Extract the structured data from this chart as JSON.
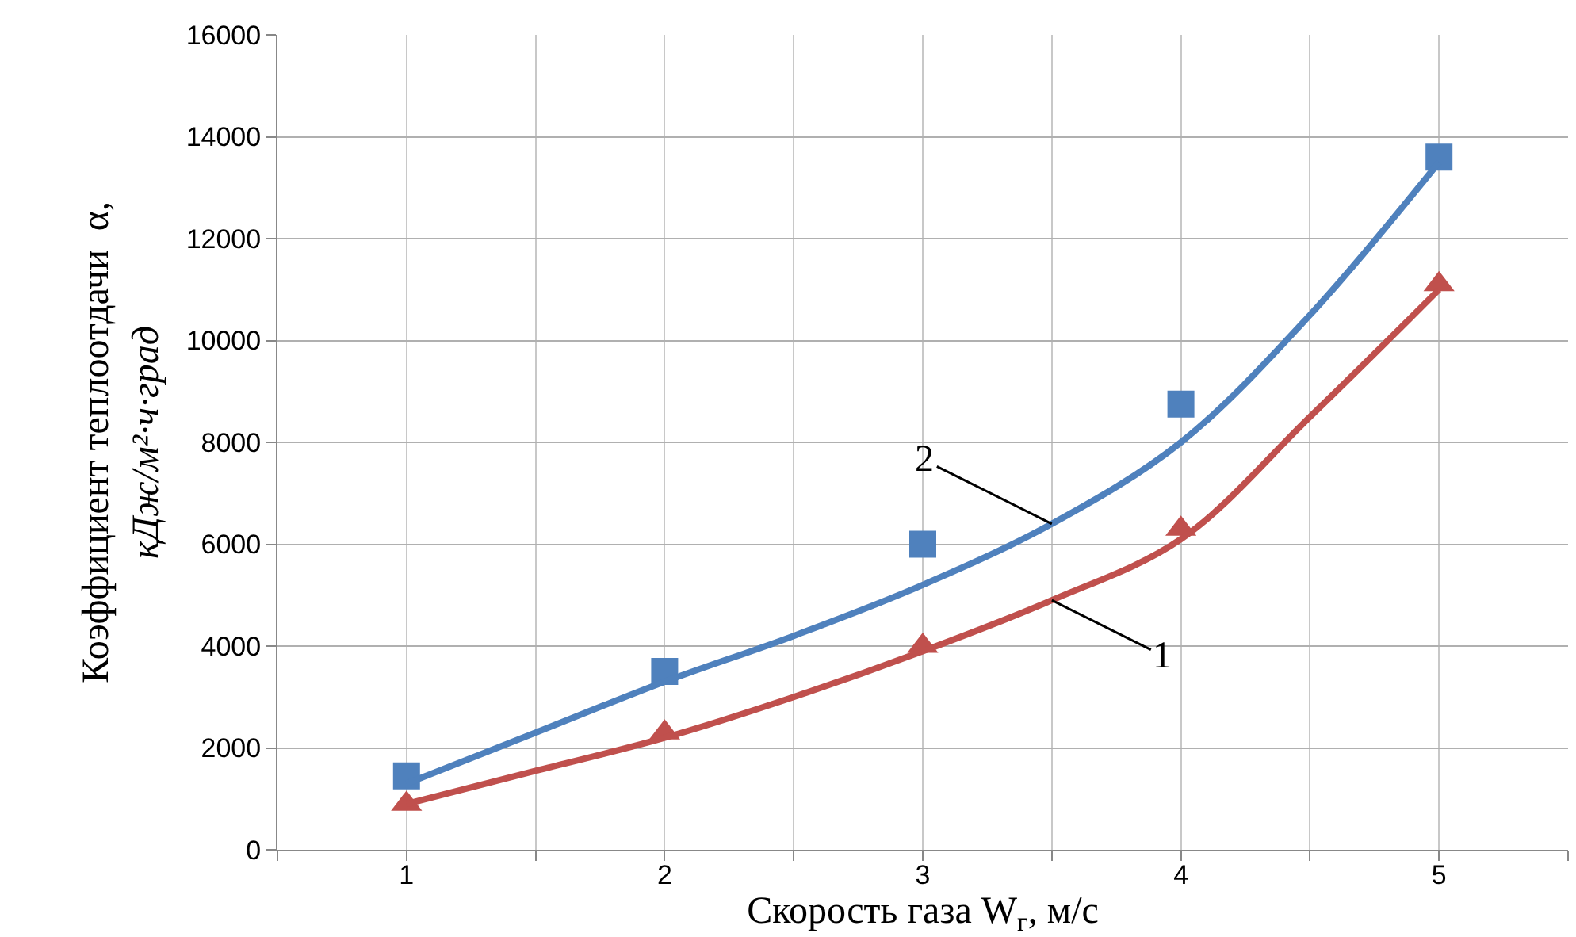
{
  "chart_data": {
    "type": "scatter",
    "xlabel": "Скорость газа W$_{г}$, м/с",
    "ylabel": "Коэффициент теплоотдачи  α,\nкДж/м²·ч·град",
    "x": [
      1,
      2,
      3,
      4,
      5
    ],
    "series": [
      {
        "color": "#4f81bd",
        "marker": "square",
        "values": [
          1450,
          3500,
          6000,
          8750,
          13600
        ]
      },
      {
        "color": "#c0504d",
        "marker": "triangle",
        "values": [
          900,
          2300,
          4000,
          6300,
          11100
        ]
      },
      {
        "type": "line",
        "name": "2",
        "color": "#4f81bd",
        "x": [
          1,
          1.5,
          2,
          2.5,
          3,
          3.5,
          4,
          4.5,
          5
        ],
        "values": [
          1300,
          2300,
          3300,
          4200,
          5200,
          6400,
          8000,
          10500,
          13500
        ]
      },
      {
        "type": "line",
        "name": "1",
        "color": "#c0504d",
        "x": [
          1,
          1.5,
          2,
          2.5,
          3,
          3.5,
          4,
          4.5,
          5
        ],
        "values": [
          900,
          1550,
          2200,
          3000,
          3900,
          4900,
          6100,
          8500,
          11000
        ]
      }
    ],
    "xlim": [
      0.5,
      5.5
    ],
    "xticks": [
      1,
      2,
      3,
      4,
      5
    ],
    "ylim": [
      0,
      16000
    ],
    "yticks": [
      0,
      2000,
      4000,
      6000,
      8000,
      10000,
      12000,
      14000,
      16000
    ],
    "grid": true
  }
}
